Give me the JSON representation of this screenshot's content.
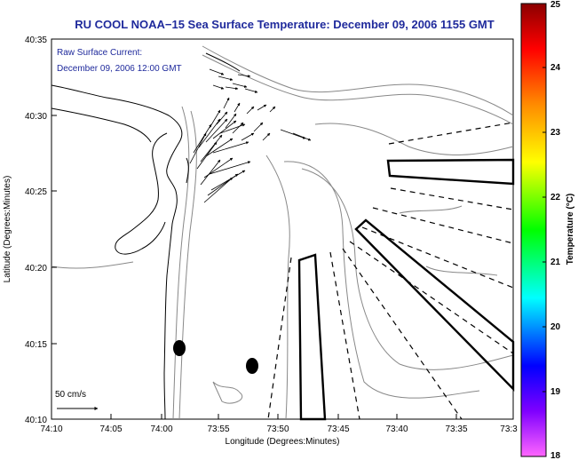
{
  "title": "RU COOL  NOAA−15  Sea Surface Temperature:  December 09, 2006 1155 GMT",
  "current_label": {
    "line1": "Raw Surface Current:",
    "line2": "December 09, 2006 12:00 GMT"
  },
  "axes": {
    "xlabel": "Longitude (Degrees:Minutes)",
    "ylabel": "Latitude (Degrees:Minutes)",
    "x_ticks": [
      "74:10",
      "74:05",
      "74:00",
      "73:55",
      "73:50",
      "73:45",
      "73:40",
      "73:35",
      "73:3"
    ],
    "y_ticks": [
      "40:35",
      "40:30",
      "40:25",
      "40:20",
      "40:15",
      "40:10"
    ]
  },
  "scale_label": "50 cm/s",
  "colorbar": {
    "label": "Temperature (°C)",
    "ticks": [
      "25",
      "24",
      "23",
      "22",
      "21",
      "20",
      "19",
      "18"
    ],
    "colors": [
      "#8b0000",
      "#ff0000",
      "#ff8800",
      "#ffff00",
      "#00ff00",
      "#00ffff",
      "#0000ff",
      "#7f00ff",
      "#ff66ff"
    ]
  }
}
